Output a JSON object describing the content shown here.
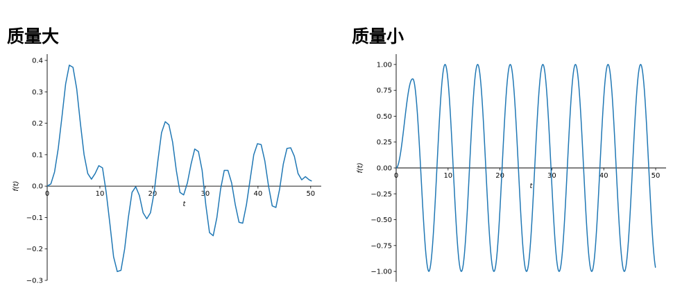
{
  "chart_data": [
    {
      "type": "line",
      "title": "质量大",
      "xlabel": "t",
      "ylabel": "f(t)",
      "xlim": [
        0,
        52
      ],
      "ylim": [
        -0.3,
        0.42
      ],
      "xticks": [
        0,
        10,
        20,
        30,
        40,
        50
      ],
      "yticks": [
        -0.3,
        -0.2,
        -0.1,
        0.0,
        0.1,
        0.2,
        0.3,
        0.4
      ],
      "xtick_labels": [
        "0",
        "10",
        "20",
        "30",
        "40",
        "50"
      ],
      "ytick_labels": [
        "−0.3",
        "−0.2",
        "−0.1",
        "0.0",
        "0.1",
        "0.2",
        "0.3",
        "0.4"
      ],
      "grid": false,
      "color": "#1f77b4",
      "series": [
        {
          "x": [
            0,
            0.7,
            1.4,
            2.1,
            2.8,
            3.5,
            4.2,
            4.9,
            5.6,
            6.3,
            7.0,
            7.7,
            8.4,
            9.1,
            9.8,
            10.5,
            11.2,
            11.9,
            12.6,
            13.3,
            14.0,
            14.7,
            15.4,
            16.1,
            16.8,
            17.5,
            18.2,
            18.9,
            19.6,
            20.3,
            21.0,
            21.7,
            22.4,
            23.1,
            23.8,
            24.5,
            25.2,
            25.9,
            26.6,
            27.3,
            28.0,
            28.7,
            29.4,
            30.1,
            30.8,
            31.5,
            32.2,
            32.9,
            33.6,
            34.3,
            35.0,
            35.7,
            36.4,
            37.1,
            37.8,
            38.5,
            39.2,
            39.9,
            40.6,
            41.3,
            42.0,
            42.7,
            43.4,
            44.1,
            44.8,
            45.5,
            46.2,
            46.9,
            47.6,
            48.3,
            49.0,
            49.7,
            50.2
          ],
          "y": [
            0.0,
            0.007,
            0.045,
            0.12,
            0.22,
            0.325,
            0.385,
            0.378,
            0.31,
            0.2,
            0.1,
            0.04,
            0.022,
            0.04,
            0.065,
            0.058,
            -0.02,
            -0.12,
            -0.225,
            -0.272,
            -0.268,
            -0.2,
            -0.1,
            -0.02,
            -0.002,
            -0.03,
            -0.085,
            -0.104,
            -0.085,
            -0.02,
            0.08,
            0.17,
            0.205,
            0.195,
            0.14,
            0.05,
            -0.02,
            -0.028,
            0.01,
            0.07,
            0.118,
            0.11,
            0.05,
            -0.06,
            -0.148,
            -0.158,
            -0.1,
            -0.01,
            0.05,
            0.05,
            0.01,
            -0.06,
            -0.115,
            -0.118,
            -0.06,
            0.02,
            0.1,
            0.135,
            0.132,
            0.08,
            0.0,
            -0.063,
            -0.068,
            -0.01,
            0.07,
            0.12,
            0.122,
            0.095,
            0.04,
            0.02,
            0.03,
            0.02,
            0.016
          ]
        }
      ]
    },
    {
      "type": "line",
      "title": "质量小",
      "xlabel": "t",
      "ylabel": "f(t)",
      "xlim": [
        0,
        52
      ],
      "ylim": [
        -1.1,
        1.1
      ],
      "xticks": [
        0,
        10,
        20,
        30,
        40,
        50
      ],
      "yticks": [
        -1.0,
        -0.75,
        -0.5,
        -0.25,
        0.0,
        0.25,
        0.5,
        0.75,
        1.0
      ],
      "xtick_labels": [
        "0",
        "10",
        "20",
        "30",
        "40",
        "50"
      ],
      "ytick_labels": [
        "−1.00",
        "−0.75",
        "−0.50",
        "−0.25",
        "0.00",
        "0.25",
        "0.50",
        "0.75",
        "1.00"
      ],
      "grid": false,
      "color": "#1f77b4",
      "series": [
        {
          "function": "sinusoid",
          "period": 6.28,
          "phase_t_max": 3.14,
          "start_amplitude": 0.86,
          "amplitude": 1.0,
          "x_end": 50,
          "y_end": -0.96
        }
      ]
    }
  ]
}
